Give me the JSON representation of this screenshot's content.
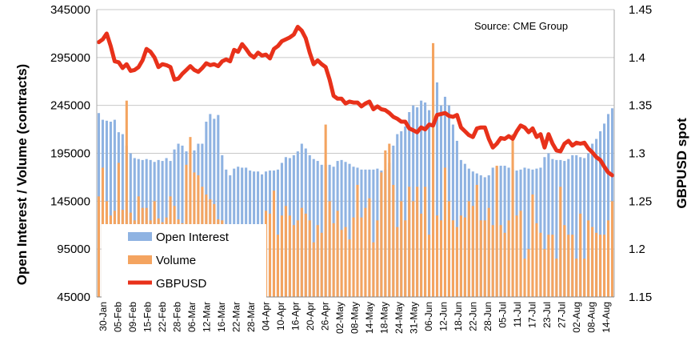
{
  "chart_data": {
    "type": "bar",
    "source_note": "Source: CME Group",
    "y_left_label": "Open Interest / Volume (contracts)",
    "y_right_label": "GBPUSD spot",
    "y_left_ticks": [
      "345000",
      "295000",
      "245000",
      "195000",
      "145000",
      "95000",
      "45000"
    ],
    "y_right_ticks": [
      "1.45",
      "1.4",
      "1.35",
      "1.3",
      "1.25",
      "1.2",
      "1.15"
    ],
    "y_left_lim": [
      45000,
      345000
    ],
    "y_right_lim": [
      1.15,
      1.45
    ],
    "x_tick_labels": [
      "30-Jan",
      "05-Feb",
      "09-Feb",
      "15-Feb",
      "22-Feb",
      "28-Feb",
      "06-Mar",
      "12-Mar",
      "16-Mar",
      "22-Mar",
      "28-Mar",
      "04-Apr",
      "10-Apr",
      "16-Apr",
      "20-Apr",
      "26-Apr",
      "02-May",
      "08-May",
      "14-May",
      "18-May",
      "24-May",
      "31-May",
      "06-Jun",
      "12-Jun",
      "18-Jun",
      "22-Jun",
      "28-Jun",
      "05-Jul",
      "11-Jul",
      "17-Jul",
      "23-Jul",
      "27-Jul",
      "02-Aug",
      "08-Aug",
      "14-Aug"
    ],
    "legend": [
      {
        "label": "Open Interest",
        "color": "#8fb3e2"
      },
      {
        "label": "Volume",
        "color": "#f4a460"
      },
      {
        "label": "GBPUSD",
        "color": "#e8311a"
      }
    ],
    "series": [
      {
        "name": "Open Interest",
        "type": "bar",
        "axis": "left",
        "values": [
          237000,
          230000,
          229000,
          228000,
          230000,
          217000,
          215000,
          203000,
          195000,
          190000,
          189000,
          188000,
          189000,
          188000,
          186000,
          188000,
          187000,
          190000,
          187000,
          199000,
          205000,
          203000,
          197000,
          198000,
          198000,
          205000,
          205000,
          228000,
          236000,
          231000,
          235000,
          193000,
          178000,
          172000,
          179000,
          181000,
          180000,
          180000,
          177000,
          176000,
          176000,
          173000,
          176000,
          177000,
          177000,
          178000,
          185000,
          191000,
          190000,
          193000,
          197000,
          205000,
          200000,
          193000,
          189000,
          187000,
          183000,
          183000,
          183000,
          181000,
          187000,
          188000,
          186000,
          184000,
          181000,
          180000,
          178000,
          178000,
          178000,
          178000,
          179000,
          177000,
          178000,
          185000,
          203000,
          215000,
          218000,
          223000,
          238000,
          245000,
          243000,
          250000,
          248000,
          240000,
          250000,
          269000,
          245000,
          254000,
          245000,
          225000,
          208000,
          188000,
          184000,
          179000,
          176000,
          174000,
          172000,
          170000,
          172000,
          180000,
          181000,
          182000,
          182000,
          180000,
          178000,
          177000,
          178000,
          180000,
          179000,
          178000,
          179000,
          180000,
          191000,
          195000,
          189000,
          188000,
          188000,
          187000,
          189000,
          193000,
          193000,
          191000,
          190000,
          195000,
          205000,
          210000,
          218000,
          226000,
          236000,
          242000
        ]
      },
      {
        "name": "Volume",
        "type": "bar",
        "axis": "left",
        "values": [
          150000,
          180000,
          145000,
          130000,
          135000,
          185000,
          136000,
          250000,
          133000,
          125000,
          150000,
          138000,
          138000,
          125000,
          145000,
          127000,
          123000,
          128000,
          150000,
          140000,
          126000,
          122000,
          183000,
          212000,
          175000,
          172000,
          160000,
          152000,
          147000,
          142000,
          126000,
          125000,
          120000,
          110000,
          80000,
          86000,
          90000,
          85000,
          98000,
          115000,
          115000,
          120000,
          135000,
          132000,
          156000,
          110000,
          130000,
          140000,
          130000,
          120000,
          125000,
          138000,
          132000,
          125000,
          102000,
          120000,
          112000,
          225000,
          145000,
          122000,
          135000,
          115000,
          118000,
          105000,
          128000,
          162000,
          128000,
          138000,
          148000,
          102000,
          125000,
          175000,
          198000,
          205000,
          162000,
          118000,
          145000,
          125000,
          160000,
          145000,
          160000,
          132000,
          160000,
          110000,
          310000,
          130000,
          125000,
          180000,
          145000,
          125000,
          118000,
          130000,
          128000,
          145000,
          140000,
          162000,
          125000,
          125000,
          138000,
          120000,
          182000,
          120000,
          112000,
          125000,
          215000,
          130000,
          135000,
          85000,
          95000,
          152000,
          122000,
          112000,
          95000,
          110000,
          110000,
          85000,
          160000,
          120000,
          110000,
          110000,
          85000,
          132000,
          85000,
          125000,
          118000,
          112000,
          110000,
          110000,
          125000,
          145000
        ]
      },
      {
        "name": "GBPUSD",
        "type": "line",
        "axis": "right",
        "values": [
          1.416,
          1.419,
          1.425,
          1.412,
          1.396,
          1.395,
          1.389,
          1.393,
          1.386,
          1.387,
          1.39,
          1.397,
          1.409,
          1.406,
          1.4,
          1.39,
          1.393,
          1.392,
          1.39,
          1.377,
          1.378,
          1.383,
          1.387,
          1.391,
          1.387,
          1.385,
          1.389,
          1.394,
          1.392,
          1.393,
          1.391,
          1.396,
          1.398,
          1.396,
          1.408,
          1.406,
          1.414,
          1.409,
          1.403,
          1.4,
          1.405,
          1.402,
          1.403,
          1.399,
          1.409,
          1.412,
          1.417,
          1.419,
          1.421,
          1.424,
          1.432,
          1.428,
          1.42,
          1.405,
          1.393,
          1.397,
          1.393,
          1.39,
          1.377,
          1.36,
          1.357,
          1.357,
          1.352,
          1.354,
          1.353,
          1.353,
          1.349,
          1.352,
          1.354,
          1.346,
          1.349,
          1.346,
          1.345,
          1.342,
          1.338,
          1.336,
          1.333,
          1.333,
          1.326,
          1.324,
          1.322,
          1.327,
          1.325,
          1.33,
          1.329,
          1.34,
          1.341,
          1.342,
          1.339,
          1.338,
          1.34,
          1.327,
          1.323,
          1.319,
          1.317,
          1.326,
          1.327,
          1.327,
          1.315,
          1.306,
          1.31,
          1.316,
          1.315,
          1.318,
          1.315,
          1.323,
          1.329,
          1.327,
          1.322,
          1.326,
          1.317,
          1.32,
          1.306,
          1.32,
          1.31,
          1.303,
          1.302,
          1.31,
          1.313,
          1.308,
          1.311,
          1.31,
          1.311,
          1.305,
          1.301,
          1.296,
          1.293,
          1.286,
          1.28,
          1.277
        ]
      }
    ]
  }
}
